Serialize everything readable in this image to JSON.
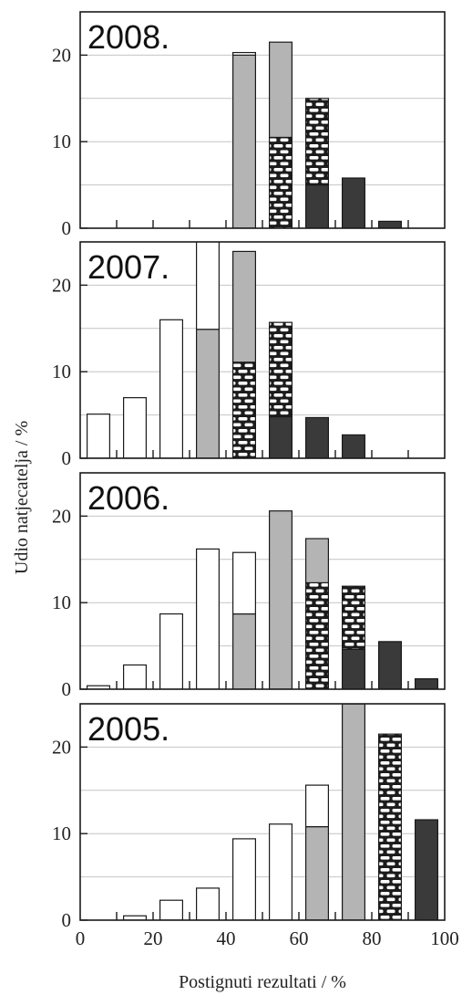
{
  "chart_data": {
    "type": "bar",
    "stacked": true,
    "xlabel": "Postignuti rezultati / %",
    "ylabel": "Udio natjecatelja / %",
    "xlim": [
      0,
      100
    ],
    "ylim": [
      0,
      25
    ],
    "xticks": [
      "0",
      "20",
      "40",
      "60",
      "80",
      "100"
    ],
    "yticks": [
      "0",
      "10",
      "20"
    ],
    "grid": "horizontal",
    "bin_width": 10,
    "styles": {
      "white": "#ffffff",
      "gray": "#b4b4b4",
      "pattern": "pattern",
      "dark": "#3a3a3a"
    },
    "panels": [
      {
        "label": "2008.",
        "bars": [
          {
            "x": 45,
            "segments": [
              {
                "style": "gray",
                "value": 20.0
              },
              {
                "style": "white",
                "value": 0.3
              }
            ]
          },
          {
            "x": 55,
            "segments": [
              {
                "style": "pattern",
                "value": 10.5
              },
              {
                "style": "gray",
                "value": 11.0
              }
            ]
          },
          {
            "x": 65,
            "segments": [
              {
                "style": "dark",
                "value": 5.0
              },
              {
                "style": "pattern",
                "value": 10.0
              }
            ]
          },
          {
            "x": 75,
            "segments": [
              {
                "style": "dark",
                "value": 5.8
              }
            ]
          },
          {
            "x": 85,
            "segments": [
              {
                "style": "dark",
                "value": 0.8
              }
            ]
          }
        ]
      },
      {
        "label": "2007.",
        "bars": [
          {
            "x": 5,
            "segments": [
              {
                "style": "white",
                "value": 5.1
              }
            ]
          },
          {
            "x": 15,
            "segments": [
              {
                "style": "white",
                "value": 7.0
              }
            ]
          },
          {
            "x": 25,
            "segments": [
              {
                "style": "white",
                "value": 16.0
              }
            ]
          },
          {
            "x": 35,
            "segments": [
              {
                "style": "gray",
                "value": 14.9
              },
              {
                "style": "white",
                "value": 10.5
              }
            ]
          },
          {
            "x": 45,
            "segments": [
              {
                "style": "pattern",
                "value": 11.1
              },
              {
                "style": "gray",
                "value": 12.8
              }
            ]
          },
          {
            "x": 55,
            "segments": [
              {
                "style": "dark",
                "value": 4.8
              },
              {
                "style": "pattern",
                "value": 10.9
              }
            ]
          },
          {
            "x": 65,
            "segments": [
              {
                "style": "dark",
                "value": 4.7
              }
            ]
          },
          {
            "x": 75,
            "segments": [
              {
                "style": "dark",
                "value": 2.7
              }
            ]
          }
        ]
      },
      {
        "label": "2006.",
        "bars": [
          {
            "x": 5,
            "segments": [
              {
                "style": "white",
                "value": 0.4
              }
            ]
          },
          {
            "x": 15,
            "segments": [
              {
                "style": "white",
                "value": 2.8
              }
            ]
          },
          {
            "x": 25,
            "segments": [
              {
                "style": "white",
                "value": 8.7
              }
            ]
          },
          {
            "x": 35,
            "segments": [
              {
                "style": "white",
                "value": 16.2
              }
            ]
          },
          {
            "x": 45,
            "segments": [
              {
                "style": "gray",
                "value": 8.7
              },
              {
                "style": "white",
                "value": 7.1
              }
            ]
          },
          {
            "x": 55,
            "segments": [
              {
                "style": "gray",
                "value": 20.6
              }
            ]
          },
          {
            "x": 65,
            "segments": [
              {
                "style": "pattern",
                "value": 12.3
              },
              {
                "style": "gray",
                "value": 5.1
              }
            ]
          },
          {
            "x": 75,
            "segments": [
              {
                "style": "dark",
                "value": 4.6
              },
              {
                "style": "pattern",
                "value": 7.3
              }
            ]
          },
          {
            "x": 85,
            "segments": [
              {
                "style": "dark",
                "value": 5.5
              }
            ]
          },
          {
            "x": 95,
            "segments": [
              {
                "style": "dark",
                "value": 1.2
              }
            ]
          }
        ]
      },
      {
        "label": "2005.",
        "bars": [
          {
            "x": 15,
            "segments": [
              {
                "style": "white",
                "value": 0.5
              }
            ]
          },
          {
            "x": 25,
            "segments": [
              {
                "style": "white",
                "value": 2.3
              }
            ]
          },
          {
            "x": 35,
            "segments": [
              {
                "style": "white",
                "value": 3.7
              }
            ]
          },
          {
            "x": 45,
            "segments": [
              {
                "style": "white",
                "value": 9.4
              }
            ]
          },
          {
            "x": 55,
            "segments": [
              {
                "style": "white",
                "value": 11.1
              }
            ]
          },
          {
            "x": 65,
            "segments": [
              {
                "style": "gray",
                "value": 10.8
              },
              {
                "style": "white",
                "value": 4.8
              }
            ]
          },
          {
            "x": 75,
            "segments": [
              {
                "style": "gray",
                "value": 25.0
              }
            ]
          },
          {
            "x": 85,
            "segments": [
              {
                "style": "pattern",
                "value": 21.5
              }
            ]
          },
          {
            "x": 95,
            "segments": [
              {
                "style": "dark",
                "value": 11.6
              }
            ]
          }
        ]
      }
    ]
  }
}
